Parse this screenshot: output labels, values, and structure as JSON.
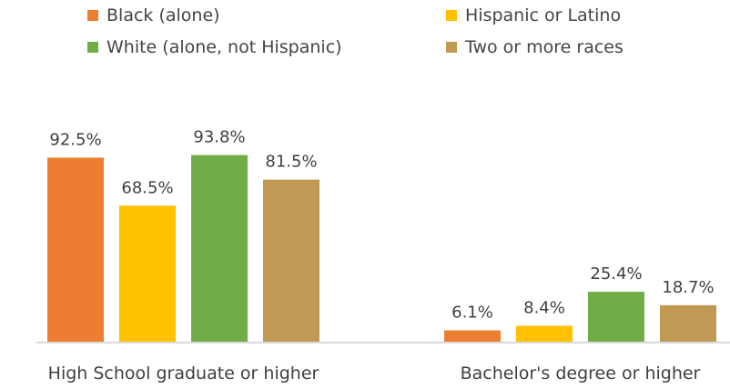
{
  "chart_data": {
    "type": "bar",
    "categories": [
      "High School graduate or higher",
      "Bachelor's degree or higher"
    ],
    "series": [
      {
        "name": "Black (alone)",
        "values": [
          92.5,
          6.1
        ],
        "labels": [
          "92.5%",
          "6.1%"
        ],
        "color": "#ED7D31"
      },
      {
        "name": "Hispanic or Latino",
        "values": [
          68.5,
          8.4
        ],
        "labels": [
          "68.5%",
          "8.4%"
        ],
        "color": "#FFC000"
      },
      {
        "name": "White (alone, not Hispanic)",
        "values": [
          93.8,
          25.4
        ],
        "labels": [
          "93.8%",
          "25.4%"
        ],
        "color": "#70AD47"
      },
      {
        "name": "Two or more races",
        "values": [
          81.5,
          18.7
        ],
        "labels": [
          "81.5%",
          "18.7%"
        ],
        "color": "#C09A55"
      }
    ],
    "ylim": [
      0,
      100
    ],
    "grid": false,
    "legend_position": "top",
    "axis_color": "#d9d9d9"
  }
}
